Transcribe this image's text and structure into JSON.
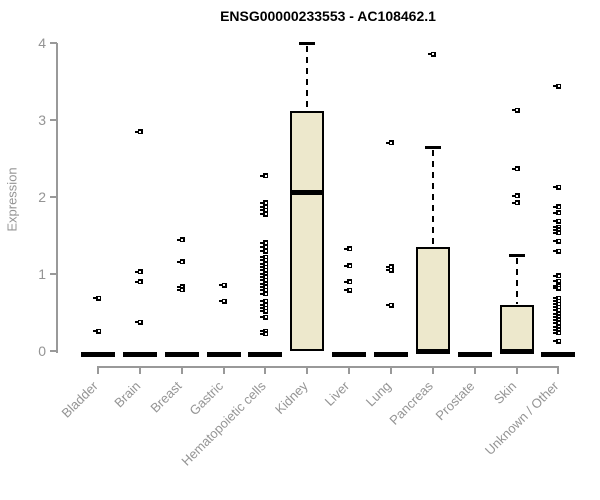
{
  "chart_data": {
    "type": "boxplot",
    "title": "ENSG00000233553 - AC108462.1",
    "ylabel": "Expression",
    "xlabel": "",
    "ylim": [
      0,
      4
    ],
    "yticks": [
      0,
      1,
      2,
      3,
      4
    ],
    "grid": false,
    "legend": "none",
    "box_fill": "#EDE8CC",
    "box_stroke": "#000000",
    "axis_color": "#999999",
    "label_color": "#949494",
    "title_color": "#000000",
    "categories": [
      "Bladder",
      "Brain",
      "Breast",
      "Gastric",
      "Hematopoietic cells",
      "Kidney",
      "Liver",
      "Lung",
      "Pancreas",
      "Prostate",
      "Skin",
      "Unknown / Other"
    ],
    "groups": [
      {
        "label": "Bladder",
        "box": {
          "q1": 0,
          "median": 0,
          "q3": 0,
          "whisker_high": 0
        },
        "points": [
          0.68,
          0.25
        ]
      },
      {
        "label": "Brain",
        "box": {
          "q1": 0,
          "median": 0,
          "q3": 0,
          "whisker_high": 0
        },
        "points": [
          2.84,
          1.02,
          0.89,
          0.37
        ]
      },
      {
        "label": "Breast",
        "box": {
          "q1": 0,
          "median": 0,
          "q3": 0,
          "whisker_high": 0
        },
        "points": [
          1.44,
          1.15,
          0.83,
          0.79
        ]
      },
      {
        "label": "Gastric",
        "box": {
          "q1": 0,
          "median": 0,
          "q3": 0,
          "whisker_high": 0
        },
        "points": [
          0.85,
          0.64
        ]
      },
      {
        "label": "Hematopoietic cells",
        "box": {
          "q1": 0,
          "median": 0,
          "q3": 0,
          "whisker_high": 0
        },
        "points": [
          2.27,
          1.92,
          1.87,
          1.82,
          1.77,
          1.4,
          1.34,
          1.29,
          1.21,
          1.17,
          1.12,
          1.08,
          1.04,
          1.0,
          0.96,
          0.91,
          0.87,
          0.83,
          0.78,
          0.74,
          0.64,
          0.59,
          0.55,
          0.51,
          0.43,
          0.25,
          0.22
        ]
      },
      {
        "label": "Kidney",
        "box": {
          "q1": 0,
          "median": 2.07,
          "q3": 3.12,
          "whisker_high": 4.0
        },
        "points": []
      },
      {
        "label": "Liver",
        "box": {
          "q1": 0,
          "median": 0,
          "q3": 0,
          "whisker_high": 0
        },
        "points": [
          1.32,
          1.1,
          0.89,
          0.78
        ]
      },
      {
        "label": "Lung",
        "box": {
          "q1": 0,
          "median": 0,
          "q3": 0,
          "whisker_high": 0
        },
        "points": [
          2.7,
          1.09,
          1.04,
          0.59
        ]
      },
      {
        "label": "Pancreas",
        "box": {
          "q1": 0,
          "median": 0,
          "q3": 1.35,
          "whisker_high": 2.65
        },
        "points": [
          3.85
        ]
      },
      {
        "label": "Prostate",
        "box": {
          "q1": 0,
          "median": 0,
          "q3": 0,
          "whisker_high": 0
        },
        "points": []
      },
      {
        "label": "Skin",
        "box": {
          "q1": 0,
          "median": 0,
          "q3": 0.6,
          "whisker_high": 1.25
        },
        "points": [
          3.12,
          2.36,
          2.01,
          1.92
        ]
      },
      {
        "label": "Unknown / Other",
        "box": {
          "q1": 0,
          "median": 0,
          "q3": 0,
          "whisker_high": 0
        },
        "points": [
          3.43,
          2.12,
          1.87,
          1.79,
          1.68,
          1.6,
          1.57,
          1.53,
          1.42,
          1.29,
          0.97,
          0.9,
          0.84,
          0.81,
          0.68,
          0.64,
          0.6,
          0.56,
          0.52,
          0.48,
          0.44,
          0.4,
          0.36,
          0.31,
          0.27,
          0.23,
          0.12
        ]
      }
    ]
  }
}
